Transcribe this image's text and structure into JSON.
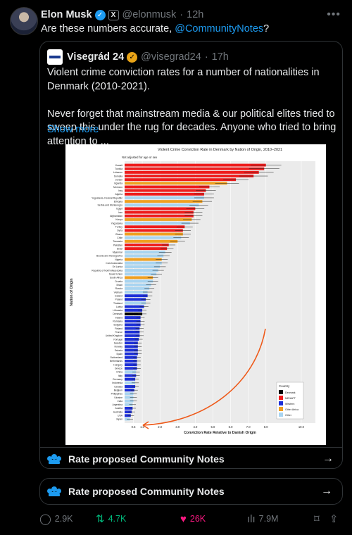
{
  "tweet": {
    "name": "Elon Musk",
    "handle": "@elonmusk",
    "time": "12h",
    "text_prefix": "Are these numbers accurate, ",
    "mention": "@CommunityNotes",
    "text_suffix": "?"
  },
  "quote": {
    "name": "Visegrád 24",
    "handle": "@visegrad24",
    "time": "17h",
    "para1": "Violent crime conviction rates for a number of nationalities in Denmark (2010-2021).",
    "para2": "Never forget that mainstream media & our political elites tried to sweep this under the rug for decades. Anyone who tried to bring attention to ...",
    "show_more": "Show more"
  },
  "community_notes": {
    "label": "Rate proposed Community Notes",
    "label2": "Rate proposed Community Notes"
  },
  "actions": {
    "replies": "2.9K",
    "reposts": "4.7K",
    "likes": "26K",
    "views": "7.9M"
  },
  "colors": {
    "accent": "#1d9bf0",
    "repost": "#00ba7c",
    "like": "#f91880",
    "denmark": "#000000",
    "menapt": "#ee1c1c",
    "western": "#1c2fd8",
    "other_africa": "#f0a020",
    "other": "#a8d4f0"
  },
  "chart_data": {
    "type": "bar",
    "title": "Violent Crime Conviction Rate in Denmark by Nation of Origin, 2010–2021",
    "subtitle": "Not adjusted for age or sex",
    "xlabel": "Conviction Rate Relative to Danish Origin",
    "ylabel": "Nation of Origin",
    "xlim": [
      0,
      10.8
    ],
    "x_ticks": [
      "0.5",
      "1.0",
      "2.0",
      "3.0",
      "4.0",
      "5.0",
      "6.0",
      "7.0",
      "8.0",
      "10.0"
    ],
    "x_tick_values": [
      0.5,
      1.0,
      2.0,
      3.0,
      4.0,
      5.0,
      6.0,
      7.0,
      8.0,
      10.0
    ],
    "legend_title": "Country",
    "legend": [
      {
        "name": "Denmark",
        "group": "denmark"
      },
      {
        "name": "MENAPT",
        "group": "menapt"
      },
      {
        "name": "Western",
        "group": "western"
      },
      {
        "name": "Other Africa",
        "group": "other_africa"
      },
      {
        "name": "Other",
        "group": "other"
      }
    ],
    "legend_position": "bottom-right",
    "categories": [
      "Kuwait",
      "Tunisia",
      "Lebanon",
      "Somalia",
      "Jordan",
      "Uganda",
      "Morocco",
      "Iraq",
      "Algeria",
      "Yugoslavia, Federal Republic",
      "Ethiopia",
      "Serbia and Montenegro",
      "Egypt",
      "Iran",
      "Afghanistan",
      "Kenya",
      "Yugoslavia",
      "Turkey",
      "Syria",
      "Ghana",
      "Chile",
      "Tanzania",
      "Pakistan",
      "Israel",
      "Myanmar",
      "Bosnia and Herzegovina",
      "Nigeria",
      "Czechoslovakia",
      "Sri Lanka",
      "Republic of North Macedonia",
      "Soviet Union",
      "South Africa",
      "Croatia",
      "Brazil",
      "Russia",
      "Vietnam",
      "Iceland",
      "Poland",
      "Thailand",
      "Latvia",
      "Lithuania",
      "Denmark",
      "Ireland",
      "Romania",
      "Bulgaria",
      "Finland",
      "France",
      "United Kingdom",
      "Portugal",
      "Sweden",
      "Norway",
      "Estonia",
      "Spain",
      "Switzerland",
      "Netherlands",
      "Hungary",
      "Greece",
      "China",
      "Italy",
      "Germany",
      "Indonesia",
      "Canada",
      "Belgium",
      "Philippines",
      "Ukraine",
      "India",
      "Argentina",
      "Austria",
      "Australia",
      "USA",
      "Japan"
    ],
    "values": [
      8.0,
      7.9,
      7.6,
      7.3,
      6.3,
      5.8,
      4.8,
      4.6,
      4.5,
      4.5,
      4.4,
      4.2,
      4.0,
      3.9,
      3.9,
      3.8,
      3.7,
      3.4,
      3.3,
      3.3,
      3.2,
      3.0,
      2.5,
      2.4,
      2.3,
      2.2,
      2.1,
      2.1,
      2.0,
      1.9,
      1.8,
      1.6,
      1.6,
      1.5,
      1.4,
      1.3,
      1.3,
      1.2,
      1.2,
      1.1,
      1.0,
      1.0,
      0.9,
      0.9,
      0.9,
      0.85,
      0.85,
      0.85,
      0.8,
      0.75,
      0.75,
      0.75,
      0.75,
      0.7,
      0.7,
      0.7,
      0.7,
      0.65,
      0.65,
      0.6,
      0.6,
      0.6,
      0.55,
      0.5,
      0.5,
      0.5,
      0.45,
      0.45,
      0.4,
      0.35,
      0.3
    ],
    "groups": [
      "menapt",
      "menapt",
      "menapt",
      "menapt",
      "menapt",
      "other_africa",
      "menapt",
      "menapt",
      "menapt",
      "other",
      "other_africa",
      "other",
      "menapt",
      "menapt",
      "menapt",
      "other_africa",
      "other",
      "menapt",
      "menapt",
      "other_africa",
      "other",
      "other_africa",
      "menapt",
      "menapt",
      "other",
      "other",
      "other_africa",
      "other",
      "other",
      "other",
      "other",
      "other_africa",
      "other",
      "other",
      "other",
      "other",
      "western",
      "western",
      "other",
      "western",
      "western",
      "denmark",
      "western",
      "western",
      "western",
      "western",
      "western",
      "western",
      "western",
      "western",
      "western",
      "western",
      "western",
      "western",
      "western",
      "western",
      "western",
      "other",
      "western",
      "western",
      "other",
      "western",
      "western",
      "other",
      "other",
      "other",
      "other",
      "western",
      "western",
      "western",
      "other"
    ]
  }
}
